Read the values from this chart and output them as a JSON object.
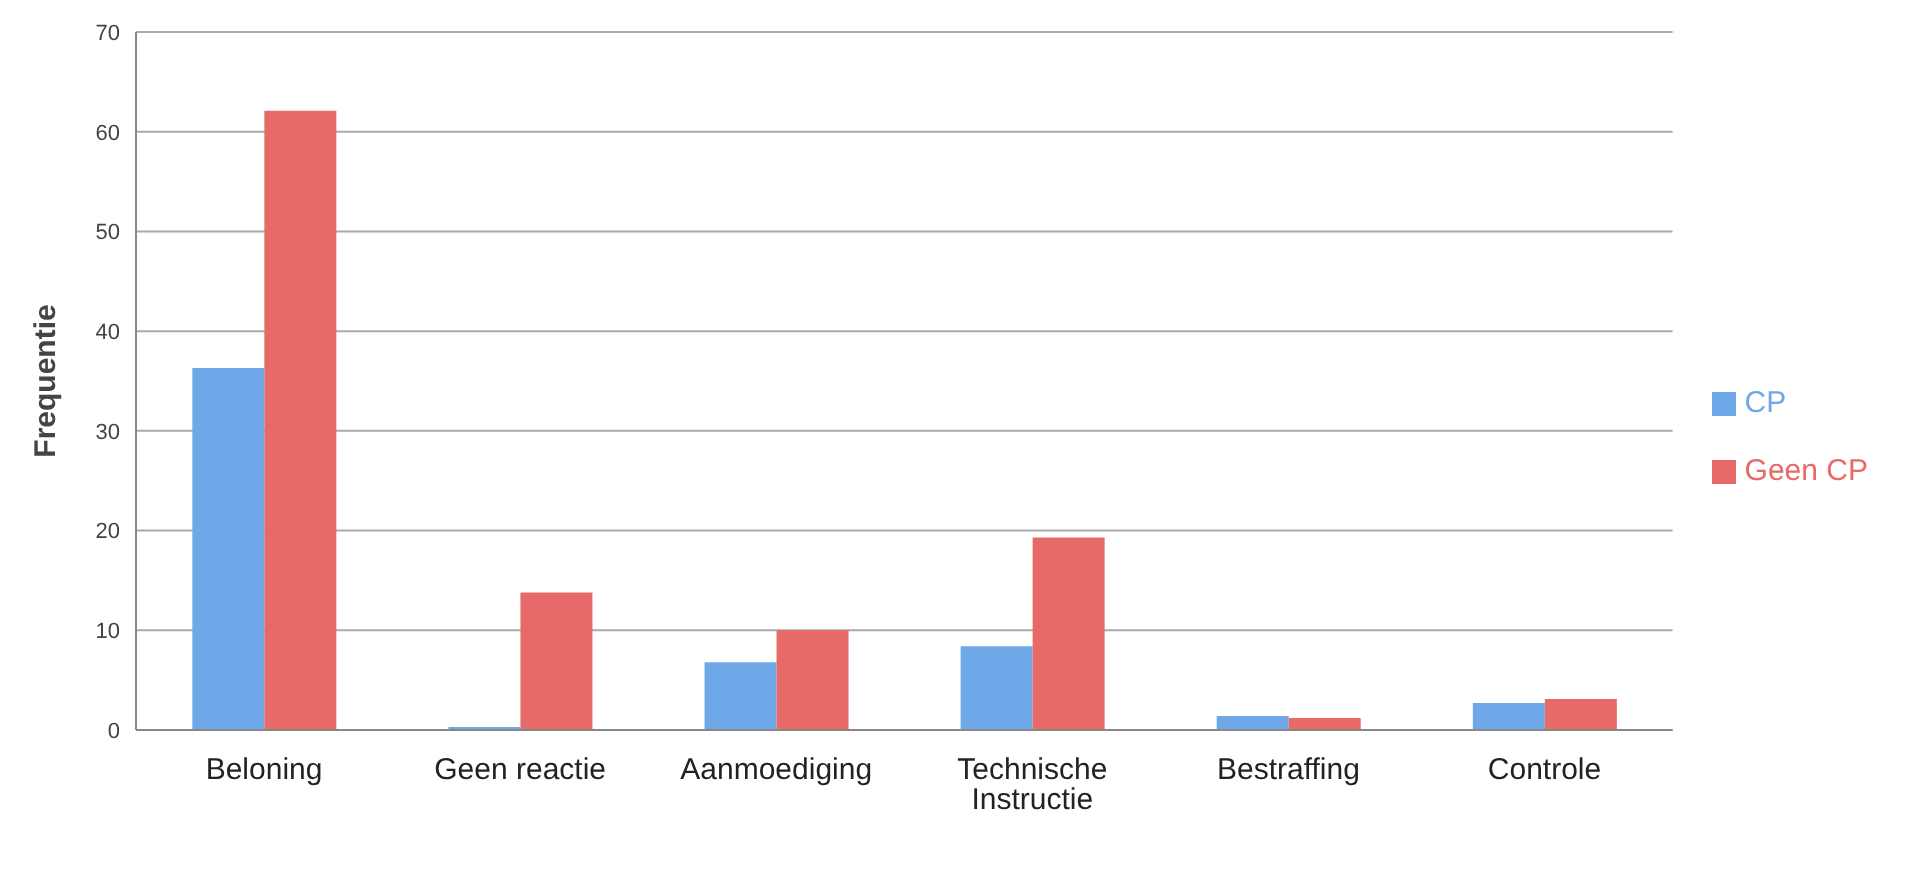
{
  "chart_data": {
    "type": "bar",
    "ylabel": "Frequentie",
    "categories": [
      "Beloning",
      "Geen reactie",
      "Aanmoediging",
      "Technische Instructie",
      "Bestraffing",
      "Controle"
    ],
    "series": [
      {
        "name": "CP",
        "color": "#6fa8e8",
        "values": [
          36.3,
          0.3,
          6.8,
          8.4,
          1.4,
          2.7
        ]
      },
      {
        "name": "Geen CP",
        "color": "#e86a68",
        "values": [
          62.1,
          13.8,
          10,
          19.3,
          1.2,
          3.1
        ]
      }
    ],
    "ylim": [
      0,
      70
    ],
    "yticks": [
      0,
      10,
      20,
      30,
      40,
      50,
      60,
      70
    ],
    "grid": "y",
    "legend": "right"
  }
}
